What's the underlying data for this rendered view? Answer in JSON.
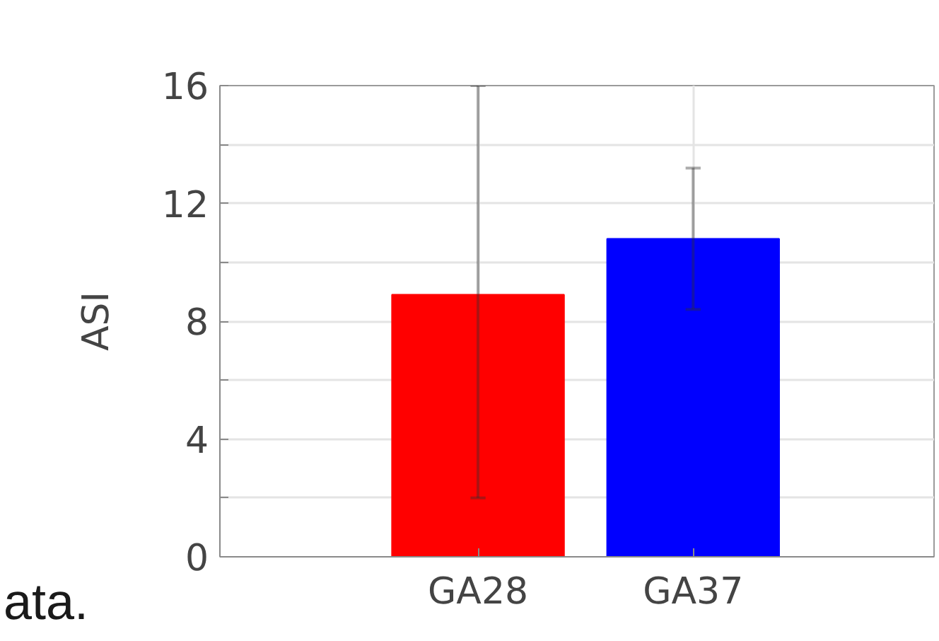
{
  "chart_data": {
    "type": "bar",
    "ylabel": "ASI",
    "categories": [
      "GA28",
      "GA37"
    ],
    "values": [
      8.9,
      10.8
    ],
    "colors": [
      "#ff0000",
      "#0000ff"
    ],
    "errors": [
      [
        2,
        16
      ],
      [
        8.4,
        13.2
      ]
    ],
    "ylim": [
      0,
      16
    ],
    "yticks": [
      0,
      {
        "value": 2,
        "label": null
      },
      4,
      {
        "value": 6,
        "label": null
      },
      8,
      {
        "value": 10,
        "label": null
      },
      12,
      {
        "value": 14,
        "label": null
      },
      16
    ],
    "grid": true,
    "annotations": [
      "ata."
    ]
  }
}
